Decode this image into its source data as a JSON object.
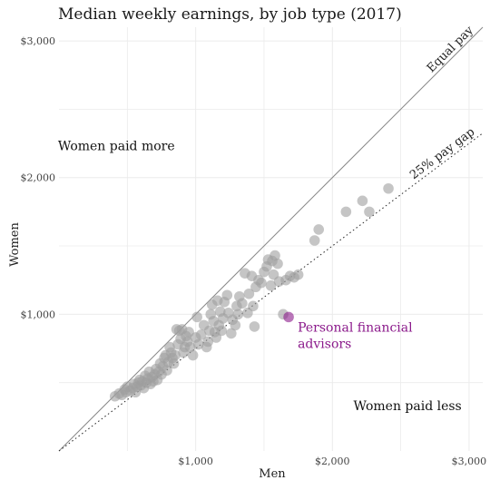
{
  "chart_data": {
    "type": "scatter",
    "title": "Median weekly earnings, by job type (2017)",
    "xlabel": "Men",
    "ylabel": "Women",
    "xlim": [
      0,
      3100
    ],
    "ylim": [
      0,
      3100
    ],
    "x_ticks": [
      {
        "value": 1000,
        "label": "$1,000"
      },
      {
        "value": 2000,
        "label": "$2,000"
      },
      {
        "value": 3000,
        "label": "$3,000"
      }
    ],
    "y_ticks": [
      {
        "value": 1000,
        "label": "$1,000"
      },
      {
        "value": 2000,
        "label": "$2,000"
      },
      {
        "value": 3000,
        "label": "$3,000"
      }
    ],
    "grid": true,
    "reference_lines": [
      {
        "label": "Equal pay",
        "slope": 1.0,
        "style": "solid"
      },
      {
        "label": "25% pay gap",
        "slope": 0.75,
        "style": "dotted"
      }
    ],
    "region_labels": [
      {
        "text": "Women paid more",
        "x": 420,
        "y": 2200
      },
      {
        "text": "Women paid less",
        "x": 2550,
        "y": 300
      }
    ],
    "highlight": {
      "label": "Personal financial advisors",
      "x": 1680,
      "y": 980,
      "color": "#8b1a8b"
    },
    "point_color": "#9e9e9e",
    "points": [
      [
        410,
        400
      ],
      [
        440,
        420
      ],
      [
        460,
        410
      ],
      [
        480,
        450
      ],
      [
        490,
        430
      ],
      [
        500,
        470
      ],
      [
        520,
        440
      ],
      [
        540,
        460
      ],
      [
        550,
        490
      ],
      [
        560,
        430
      ],
      [
        570,
        470
      ],
      [
        580,
        500
      ],
      [
        590,
        520
      ],
      [
        600,
        480
      ],
      [
        610,
        510
      ],
      [
        620,
        460
      ],
      [
        630,
        550
      ],
      [
        640,
        500
      ],
      [
        650,
        530
      ],
      [
        660,
        580
      ],
      [
        670,
        490
      ],
      [
        680,
        540
      ],
      [
        690,
        510
      ],
      [
        700,
        560
      ],
      [
        710,
        600
      ],
      [
        720,
        520
      ],
      [
        730,
        580
      ],
      [
        740,
        640
      ],
      [
        750,
        560
      ],
      [
        760,
        620
      ],
      [
        770,
        680
      ],
      [
        780,
        700
      ],
      [
        790,
        590
      ],
      [
        800,
        650
      ],
      [
        810,
        760
      ],
      [
        820,
        720
      ],
      [
        830,
        680
      ],
      [
        840,
        640
      ],
      [
        850,
        700
      ],
      [
        860,
        890
      ],
      [
        870,
        780
      ],
      [
        880,
        880
      ],
      [
        890,
        820
      ],
      [
        900,
        890
      ],
      [
        910,
        720
      ],
      [
        920,
        760
      ],
      [
        930,
        840
      ],
      [
        940,
        800
      ],
      [
        950,
        870
      ],
      [
        960,
        760
      ],
      [
        980,
        700
      ],
      [
        1000,
        830
      ],
      [
        1010,
        980
      ],
      [
        1020,
        780
      ],
      [
        1040,
        850
      ],
      [
        1060,
        920
      ],
      [
        1080,
        760
      ],
      [
        1090,
        800
      ],
      [
        1100,
        880
      ],
      [
        1110,
        1000
      ],
      [
        1120,
        1070
      ],
      [
        1130,
        950
      ],
      [
        1140,
        870
      ],
      [
        1150,
        830
      ],
      [
        1160,
        1100
      ],
      [
        1170,
        920
      ],
      [
        1180,
        1020
      ],
      [
        1190,
        880
      ],
      [
        1200,
        970
      ],
      [
        1210,
        1090
      ],
      [
        1230,
        1140
      ],
      [
        1240,
        1010
      ],
      [
        1260,
        860
      ],
      [
        1270,
        960
      ],
      [
        1290,
        920
      ],
      [
        1300,
        1060
      ],
      [
        1310,
        1000
      ],
      [
        1320,
        1130
      ],
      [
        1340,
        1080
      ],
      [
        1360,
        1300
      ],
      [
        1380,
        1010
      ],
      [
        1390,
        1150
      ],
      [
        1410,
        1280
      ],
      [
        1420,
        1060
      ],
      [
        1430,
        910
      ],
      [
        1440,
        1200
      ],
      [
        1460,
        1250
      ],
      [
        1480,
        1230
      ],
      [
        1500,
        1310
      ],
      [
        1520,
        1350
      ],
      [
        1530,
        1400
      ],
      [
        1550,
        1210
      ],
      [
        1560,
        1390
      ],
      [
        1570,
        1290
      ],
      [
        1580,
        1430
      ],
      [
        1600,
        1370
      ],
      [
        1610,
        1240
      ],
      [
        1640,
        1000
      ],
      [
        1660,
        1250
      ],
      [
        1690,
        1280
      ],
      [
        1720,
        1270
      ],
      [
        1750,
        1290
      ],
      [
        1870,
        1540
      ],
      [
        1900,
        1620
      ],
      [
        2100,
        1750
      ],
      [
        2220,
        1830
      ],
      [
        2270,
        1750
      ],
      [
        2410,
        1920
      ]
    ]
  }
}
